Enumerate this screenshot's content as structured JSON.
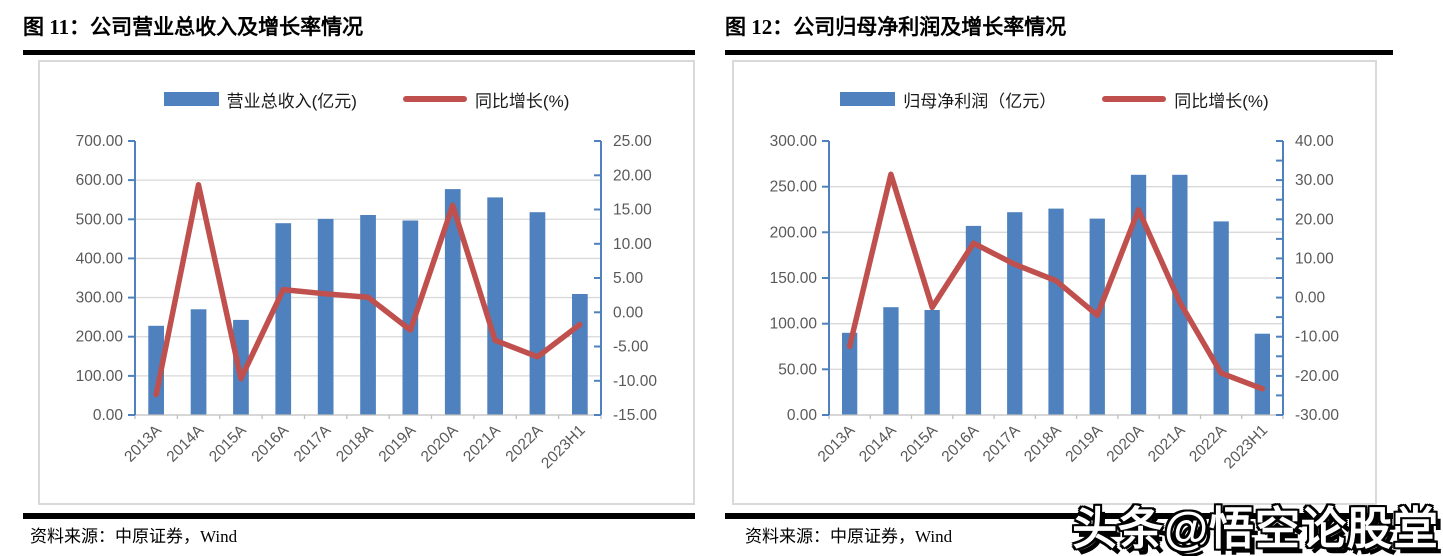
{
  "panels": [
    {
      "title": "图 11：公司营业总收入及增长率情况",
      "source_label": "资料来源：中原证券，Wind"
    },
    {
      "title": "图 12：公司归母净利润及增长率情况",
      "source_label": "资料来源：中原证券，Wind"
    }
  ],
  "watermark": "头条@悟空论股堂",
  "colors": {
    "bar": "#4E81BD",
    "line": "#C0504D",
    "grid": "#D9D9D9",
    "axis_blue": "#4E81BD",
    "axis_gray": "#BFBFBF",
    "tick_label": "#595959"
  },
  "chart_data": [
    {
      "type": "bar+line",
      "title": "公司营业总收入及增长率情况",
      "categories": [
        "2013A",
        "2014A",
        "2015A",
        "2016A",
        "2017A",
        "2018A",
        "2019A",
        "2020A",
        "2021A",
        "2022A",
        "2023H1"
      ],
      "series": [
        {
          "name": "营业总收入(亿元)",
          "type": "bar",
          "axis": "left",
          "color": "#4E81BD",
          "values": [
            228,
            270,
            243,
            490,
            501,
            511,
            497,
            577,
            556,
            518,
            309
          ]
        },
        {
          "name": "同比增长(%)",
          "type": "line",
          "axis": "right",
          "color": "#C0504D",
          "values": [
            -12.0,
            18.6,
            -9.7,
            3.3,
            2.7,
            2.2,
            -2.6,
            15.6,
            -4.1,
            -6.5,
            -1.8
          ]
        }
      ],
      "left_axis": {
        "min": 0,
        "max": 700,
        "step": 100,
        "format": "0.00"
      },
      "right_axis": {
        "min": -15,
        "max": 25,
        "step": 5,
        "label_step": 5,
        "format": "0.00"
      },
      "legend_position": "top",
      "grid": true
    },
    {
      "type": "bar+line",
      "title": "公司归母净利润及增长率情况",
      "categories": [
        "2013A",
        "2014A",
        "2015A",
        "2016A",
        "2017A",
        "2018A",
        "2019A",
        "2020A",
        "2021A",
        "2022A",
        "2023H1"
      ],
      "series": [
        {
          "name": "归母净利润（亿元）",
          "type": "bar",
          "axis": "left",
          "color": "#4E81BD",
          "values": [
            90,
            118,
            115,
            207,
            222,
            226,
            215,
            263,
            263,
            212,
            89
          ]
        },
        {
          "name": "同比增长(%)",
          "type": "line",
          "axis": "right",
          "color": "#C0504D",
          "values": [
            -12.5,
            31.5,
            -2.5,
            13.9,
            8.5,
            4.3,
            -4.5,
            22.4,
            -1.2,
            -19.3,
            -23.3
          ]
        }
      ],
      "left_axis": {
        "min": 0,
        "max": 300,
        "step": 50,
        "format": "0.00"
      },
      "right_axis": {
        "min": -30,
        "max": 40,
        "step": 5,
        "label_step": 10,
        "format": "0.00"
      },
      "legend_position": "top",
      "grid": true
    }
  ]
}
